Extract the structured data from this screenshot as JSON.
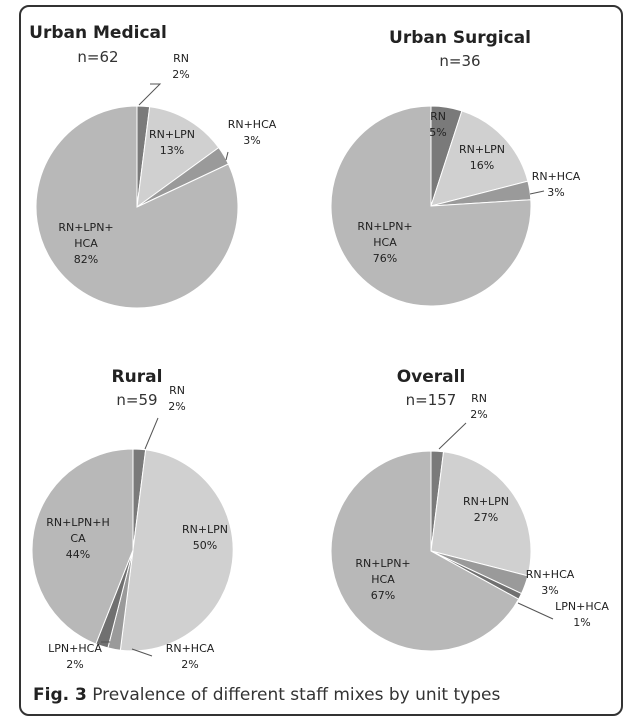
{
  "chart_data": [
    {
      "type": "pie",
      "title": "Urban Medical",
      "subtitle": "n=62",
      "slices": [
        {
          "label": [
            "RN",
            "2%"
          ],
          "value": 2,
          "color": "#7a7a7a"
        },
        {
          "label": [
            "RN+LPN",
            "13%"
          ],
          "value": 13,
          "color": "#d0d0d0"
        },
        {
          "label": [
            "RN+HCA",
            "3%"
          ],
          "value": 3,
          "color": "#9a9a9a"
        },
        {
          "label": [
            "RN+LPN+",
            "HCA",
            "82%"
          ],
          "value": 82,
          "color": "#b8b8b8"
        }
      ]
    },
    {
      "type": "pie",
      "title": "Urban Surgical",
      "subtitle": "n=36",
      "slices": [
        {
          "label": [
            "RN",
            "5%"
          ],
          "value": 5,
          "color": "#7a7a7a"
        },
        {
          "label": [
            "RN+LPN",
            "16%"
          ],
          "value": 16,
          "color": "#d0d0d0"
        },
        {
          "label": [
            "RN+HCA",
            "3%"
          ],
          "value": 3,
          "color": "#9a9a9a"
        },
        {
          "label": [
            "RN+LPN+",
            "HCA",
            "76%"
          ],
          "value": 76,
          "color": "#b8b8b8"
        }
      ]
    },
    {
      "type": "pie",
      "title": "Rural",
      "subtitle": "n=59",
      "slices": [
        {
          "label": [
            "RN",
            "2%"
          ],
          "value": 2,
          "color": "#7a7a7a"
        },
        {
          "label": [
            "RN+LPN",
            "50%"
          ],
          "value": 50,
          "color": "#d0d0d0"
        },
        {
          "label": [
            "RN+HCA",
            "2%"
          ],
          "value": 2,
          "color": "#9a9a9a"
        },
        {
          "label": [
            "LPN+HCA",
            "2%"
          ],
          "value": 2,
          "color": "#707070"
        },
        {
          "label": [
            "RN+LPN+H",
            "CA",
            "44%"
          ],
          "value": 44,
          "color": "#b8b8b8"
        }
      ]
    },
    {
      "type": "pie",
      "title": "Overall",
      "subtitle": "n=157",
      "slices": [
        {
          "label": [
            "RN",
            "2%"
          ],
          "value": 2,
          "color": "#7a7a7a"
        },
        {
          "label": [
            "RN+LPN",
            "27%"
          ],
          "value": 27,
          "color": "#d0d0d0"
        },
        {
          "label": [
            "RN+HCA",
            "3%"
          ],
          "value": 3,
          "color": "#9a9a9a"
        },
        {
          "label": [
            "LPN+HCA",
            "1%"
          ],
          "value": 1,
          "color": "#707070"
        },
        {
          "label": [
            "RN+LPN+",
            "HCA",
            "67%"
          ],
          "value": 67,
          "color": "#b8b8b8"
        }
      ]
    }
  ],
  "caption": {
    "label": "Fig. 3",
    "text": "Prevalence of different staff mixes by unit types"
  }
}
